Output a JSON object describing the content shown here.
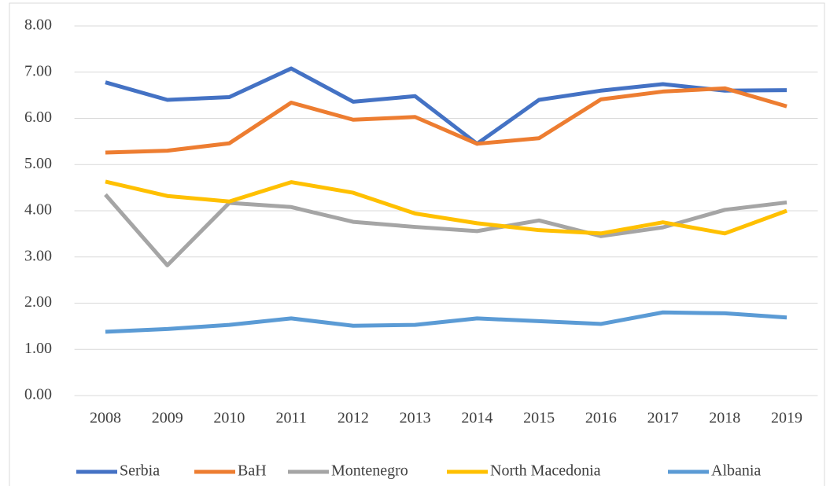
{
  "chart_data": {
    "type": "line",
    "categories": [
      "2008",
      "2009",
      "2010",
      "2011",
      "2012",
      "2013",
      "2014",
      "2015",
      "2016",
      "2017",
      "2018",
      "2019"
    ],
    "series": [
      {
        "name": "Serbia",
        "color": "#4472c4",
        "values": [
          6.78,
          6.4,
          6.46,
          7.08,
          6.36,
          6.48,
          5.45,
          6.4,
          6.6,
          6.74,
          6.6,
          6.61
        ]
      },
      {
        "name": "BaH",
        "color": "#ed7d31",
        "values": [
          5.26,
          5.3,
          5.46,
          6.34,
          5.97,
          6.03,
          5.45,
          5.57,
          6.41,
          6.58,
          6.65,
          6.26
        ]
      },
      {
        "name": "Montenegro",
        "color": "#a5a5a5",
        "values": [
          4.35,
          2.82,
          4.17,
          4.08,
          3.76,
          3.65,
          3.56,
          3.79,
          3.45,
          3.64,
          4.02,
          4.18
        ]
      },
      {
        "name": "North Macedonia",
        "color": "#ffc000",
        "values": [
          4.63,
          4.32,
          4.2,
          4.62,
          4.39,
          3.94,
          3.73,
          3.58,
          3.51,
          3.75,
          3.51,
          4.0
        ]
      },
      {
        "name": "Albania",
        "color": "#5b9bd5",
        "values": [
          1.38,
          1.44,
          1.53,
          1.67,
          1.51,
          1.53,
          1.67,
          1.61,
          1.55,
          1.8,
          1.78,
          1.69
        ]
      }
    ],
    "ylim": [
      0,
      8
    ],
    "yticks": [
      {
        "value": 0,
        "label": "0.00"
      },
      {
        "value": 1,
        "label": "1.00"
      },
      {
        "value": 2,
        "label": "2.00"
      },
      {
        "value": 3,
        "label": "3.00"
      },
      {
        "value": 4,
        "label": "4.00"
      },
      {
        "value": 5,
        "label": "5.00"
      },
      {
        "value": 6,
        "label": "6.00"
      },
      {
        "value": 7,
        "label": "7.00"
      },
      {
        "value": 8,
        "label": "8.00"
      }
    ],
    "grid": true,
    "legend": "bottom"
  }
}
